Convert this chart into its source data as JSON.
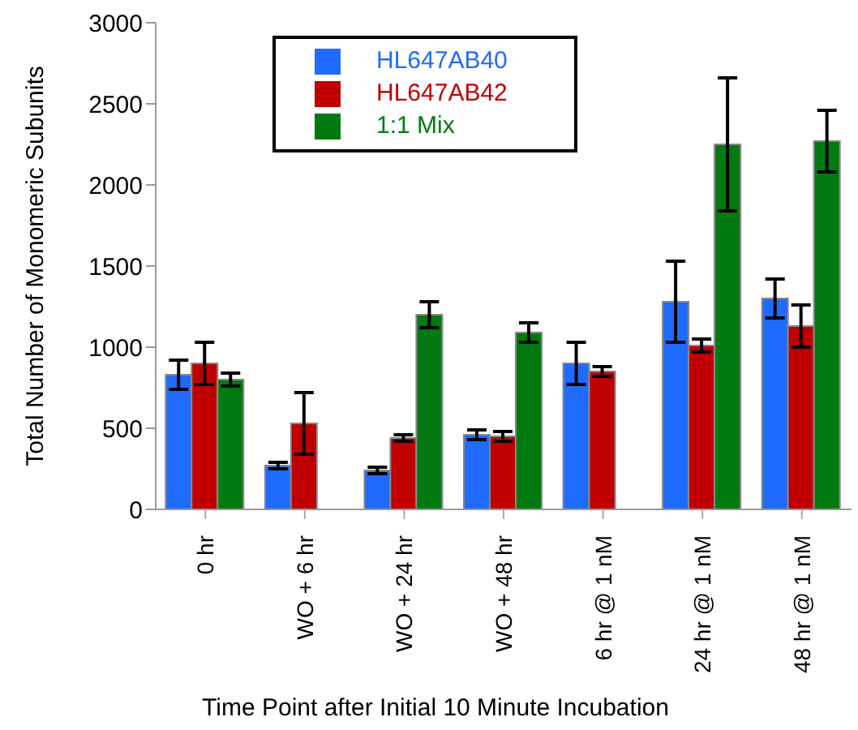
{
  "chart_data": {
    "type": "bar",
    "xlabel": "Time Point after Initial 10 Minute Incubation",
    "ylabel": "Total Number of Monomeric Subunits",
    "categories": [
      "0 hr",
      "WO + 6 hr",
      "WO + 24 hr",
      "WO + 48 hr",
      "6 hr @ 1 nM",
      "24 hr @ 1 nM",
      "48 hr @ 1 nM"
    ],
    "series": [
      {
        "name": "HL647AB40",
        "color": "#1f6bff",
        "values": [
          830,
          270,
          240,
          460,
          900,
          1280,
          1300
        ],
        "errors": [
          90,
          20,
          20,
          30,
          130,
          250,
          120
        ]
      },
      {
        "name": "HL647AB42",
        "color": "#c00000",
        "values": [
          900,
          530,
          440,
          450,
          850,
          1010,
          1130
        ],
        "errors": [
          130,
          190,
          20,
          30,
          30,
          40,
          130
        ]
      },
      {
        "name": "1:1 Mix",
        "color": "#007a10",
        "values": [
          800,
          null,
          1200,
          1090,
          null,
          2250,
          2270
        ],
        "errors": [
          40,
          null,
          80,
          60,
          null,
          410,
          190
        ]
      }
    ],
    "ylim": [
      0,
      3000
    ],
    "yticks": [
      0,
      500,
      1000,
      1500,
      2000,
      2500,
      3000
    ],
    "grid": false,
    "legend": "top"
  }
}
